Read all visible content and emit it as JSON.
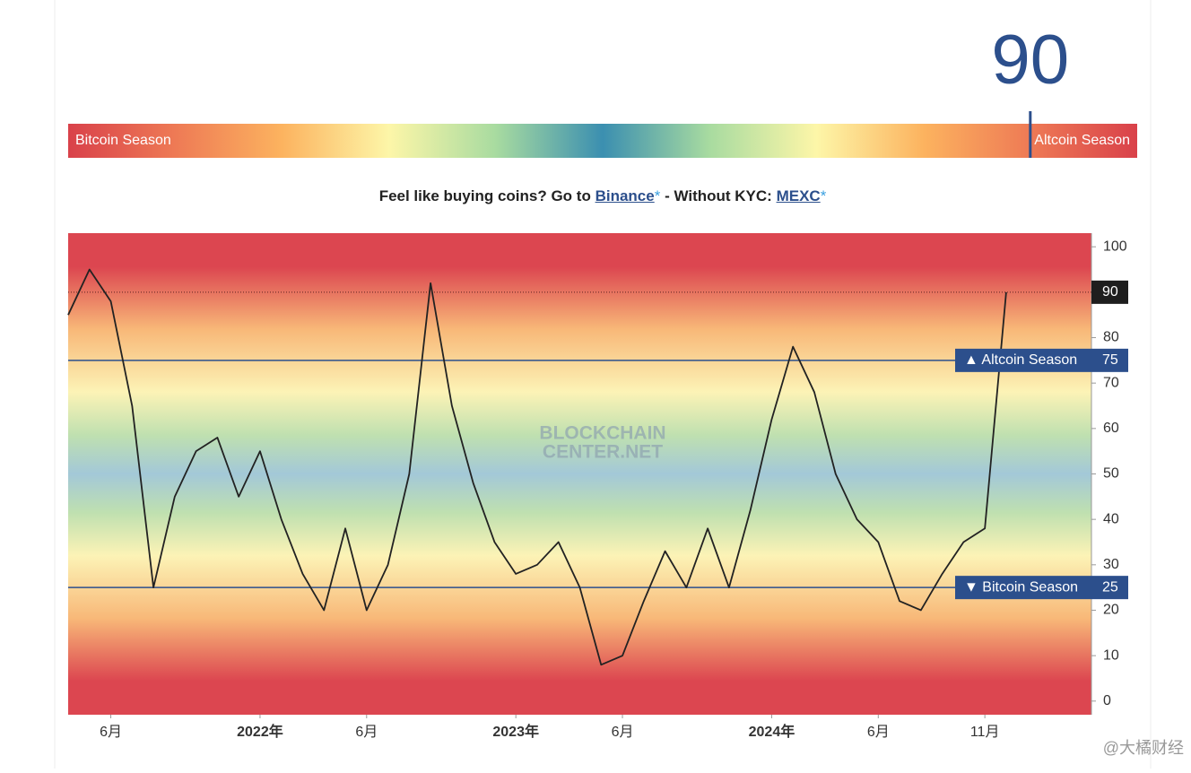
{
  "chart_data": {
    "type": "line",
    "current_value": 90,
    "season_bar": {
      "left_label": "Bitcoin Season",
      "right_label": "Altcoin Season"
    },
    "x": [
      "2021-04",
      "2021-05",
      "2021-06",
      "2021-07",
      "2021-08",
      "2021-09",
      "2021-10",
      "2021-11",
      "2021-12",
      "2022-01",
      "2022-02",
      "2022-03",
      "2022-04",
      "2022-05",
      "2022-06",
      "2022-07",
      "2022-08",
      "2022-09",
      "2022-10",
      "2022-11",
      "2022-12",
      "2023-01",
      "2023-02",
      "2023-03",
      "2023-04",
      "2023-05",
      "2023-06",
      "2023-07",
      "2023-08",
      "2023-09",
      "2023-10",
      "2023-11",
      "2023-12",
      "2024-01",
      "2024-02",
      "2024-03",
      "2024-04",
      "2024-05",
      "2024-06",
      "2024-07",
      "2024-08",
      "2024-09",
      "2024-10",
      "2024-11",
      "2024-12"
    ],
    "series": [
      {
        "color": "#222222",
        "values": [
          85,
          95,
          88,
          65,
          25,
          45,
          55,
          58,
          45,
          55,
          40,
          28,
          20,
          38,
          20,
          30,
          50,
          92,
          65,
          48,
          35,
          28,
          30,
          35,
          25,
          8,
          10,
          22,
          33,
          25,
          38,
          25,
          42,
          62,
          78,
          68,
          50,
          40,
          35,
          22,
          20,
          28,
          35,
          38,
          90
        ]
      }
    ],
    "xlim": [
      "2021-04",
      "2025-04"
    ],
    "xticks": [
      {
        "value": "2021-06",
        "label": "6月"
      },
      {
        "value": "2022-01",
        "label": "2022年"
      },
      {
        "value": "2022-06",
        "label": "6月"
      },
      {
        "value": "2023-01",
        "label": "2023年"
      },
      {
        "value": "2023-06",
        "label": "6月"
      },
      {
        "value": "2024-01",
        "label": "2024年"
      },
      {
        "value": "2024-06",
        "label": "6月"
      },
      {
        "value": "2024-11",
        "label": "11月"
      }
    ],
    "ylim": [
      -3,
      103
    ],
    "yticks": [
      0,
      10,
      20,
      30,
      40,
      50,
      60,
      70,
      80,
      90,
      100
    ],
    "reference_lines": [
      {
        "value": 75,
        "label": "▲ Altcoin Season"
      },
      {
        "value": 25,
        "label": "▼ Bitcoin Season"
      }
    ],
    "watermark": [
      "BLOCKCHAIN",
      "CENTER.NET"
    ]
  },
  "promo": {
    "lead": "Feel like buying coins? Go to",
    "link1": "Binance",
    "star1": "*",
    "middle": "- Without KYC:",
    "link2": "MEXC",
    "star2": "*"
  },
  "credit": "@大橘财经"
}
